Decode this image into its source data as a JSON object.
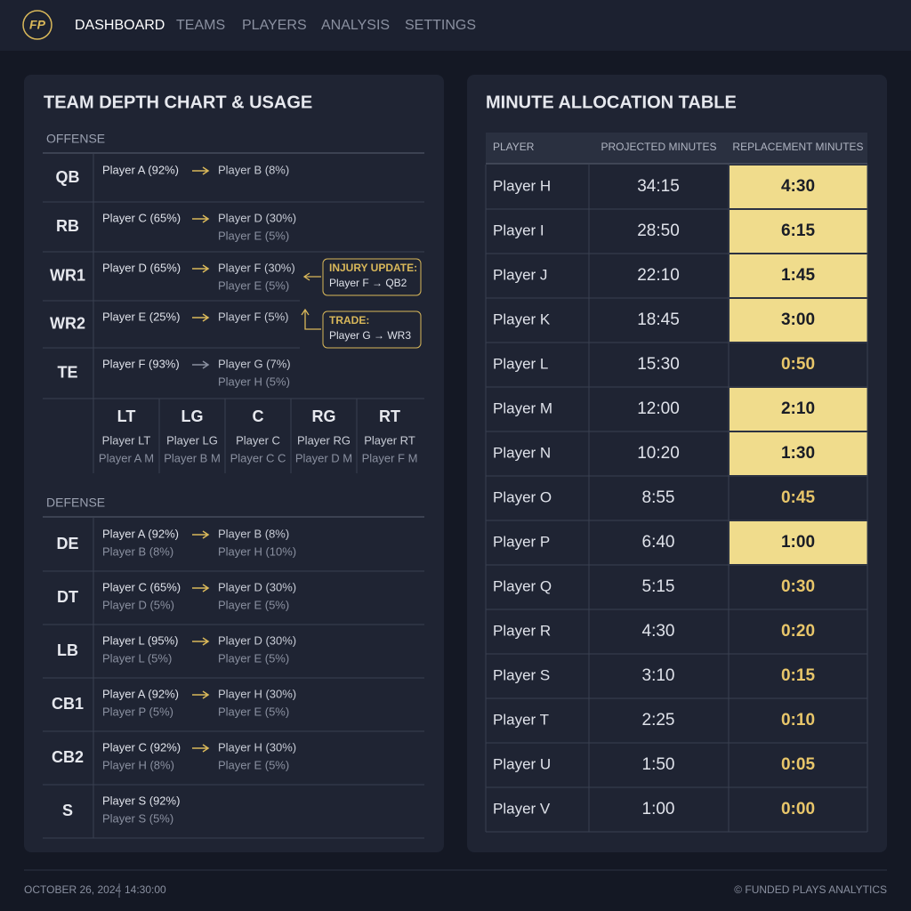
{
  "nav": {
    "logo": "FP",
    "items": [
      "DASHBOARD",
      "TEAMS",
      "PLAYERS",
      "ANALYSIS",
      "SETTINGS"
    ]
  },
  "depth_chart": {
    "title": "TEAM DEPTH CHART & USAGE",
    "offense": {
      "label": "OFFENSE",
      "rows": [
        {
          "position": "QB",
          "starter": [
            "Player A (92%)"
          ],
          "backups": [
            "Player B (8%)"
          ]
        },
        {
          "position": "RB",
          "starter": [
            "Player C (65%)"
          ],
          "backups": [
            "Player D (30%)",
            "Player E (5%)"
          ]
        },
        {
          "position": "WR1",
          "starter": [
            "Player D (65%)"
          ],
          "backups": [
            "Player F (30%)",
            "Player E (5%)"
          ]
        },
        {
          "position": "WR2",
          "starter": [
            "Player E (25%)"
          ],
          "backups": [
            "Player F (5%)"
          ]
        },
        {
          "position": "TE",
          "starter": [
            "Player F (93%)"
          ],
          "backups": [
            "Player G (7%)",
            "Player H (5%)"
          ]
        }
      ]
    },
    "offensive_line": [
      {
        "position": "LT",
        "starter": "Player LT",
        "backup": "Player A M"
      },
      {
        "position": "LG",
        "starter": "Player LG",
        "backup": "Player B M"
      },
      {
        "position": "C",
        "starter": "Player C",
        "backup": "Player C C"
      },
      {
        "position": "RG",
        "starter": "Player RG",
        "backup": "Player D M"
      },
      {
        "position": "RT",
        "starter": "Player RT",
        "backup": "Player F M"
      }
    ],
    "notes": [
      {
        "title": "INJURY UPDATE:",
        "text": "Player F → QB2"
      },
      {
        "title": "TRADE:",
        "text": "Player G → WR3"
      }
    ],
    "defense": {
      "label": "DEFENSE",
      "rows": [
        {
          "position": "DE",
          "starter": [
            "Player A (92%)",
            "Player B (8%)"
          ],
          "backups": [
            "Player B (8%)",
            "Player H (10%)"
          ]
        },
        {
          "position": "DT",
          "starter": [
            "Player C (65%)",
            "Player D (5%)"
          ],
          "backups": [
            "Player D (30%)",
            "Player E (5%)"
          ]
        },
        {
          "position": "LB",
          "starter": [
            "Player L (95%)",
            "Player L (5%)"
          ],
          "backups": [
            "Player D (30%)",
            "Player E (5%)"
          ]
        },
        {
          "position": "CB1",
          "starter": [
            "Player A (92%)",
            "Player P (5%)"
          ],
          "backups": [
            "Player H (30%)",
            "Player E (5%)"
          ]
        },
        {
          "position": "CB2",
          "starter": [
            "Player C (92%)",
            "Player H (8%)"
          ],
          "backups": [
            "Player H (30%)",
            "Player E (5%)"
          ]
        },
        {
          "position": "S",
          "starter": [
            "Player S (92%)",
            "Player S (5%)"
          ],
          "backups": []
        }
      ]
    }
  },
  "minute_table": {
    "title": "MINUTE ALLOCATION TABLE",
    "columns": [
      "PLAYER",
      "PROJECTED MINUTES",
      "REPLACEMENT MINUTES"
    ],
    "rows": [
      {
        "player": "Player H",
        "projected": "34:15",
        "replacement": "4:30",
        "highlight": true
      },
      {
        "player": "Player I",
        "projected": "28:50",
        "replacement": "6:15",
        "highlight": true
      },
      {
        "player": "Player J",
        "projected": "22:10",
        "replacement": "1:45",
        "highlight": true
      },
      {
        "player": "Player K",
        "projected": "18:45",
        "replacement": "3:00",
        "highlight": true
      },
      {
        "player": "Player L",
        "projected": "15:30",
        "replacement": "0:50",
        "highlight": false
      },
      {
        "player": "Player M",
        "projected": "12:00",
        "replacement": "2:10",
        "highlight": true
      },
      {
        "player": "Player N",
        "projected": "10:20",
        "replacement": "1:30",
        "highlight": true
      },
      {
        "player": "Player O",
        "projected": "8:55",
        "replacement": "0:45",
        "highlight": false
      },
      {
        "player": "Player P",
        "projected": "6:40",
        "replacement": "1:00",
        "highlight": true
      },
      {
        "player": "Player Q",
        "projected": "5:15",
        "replacement": "0:30",
        "highlight": false
      },
      {
        "player": "Player R",
        "projected": "4:30",
        "replacement": "0:20",
        "highlight": false
      },
      {
        "player": "Player S",
        "projected": "3:10",
        "replacement": "0:15",
        "highlight": false
      },
      {
        "player": "Player T",
        "projected": "2:25",
        "replacement": "0:10",
        "highlight": false
      },
      {
        "player": "Player U",
        "projected": "1:50",
        "replacement": "0:05",
        "highlight": false
      },
      {
        "player": "Player V",
        "projected": "1:00",
        "replacement": "0:00",
        "highlight": false
      }
    ]
  },
  "footer": {
    "date": "OCTOBER 26, 2024",
    "time": "14:30:00",
    "copyright": "© FUNDED PLAYS ANALYTICS"
  }
}
